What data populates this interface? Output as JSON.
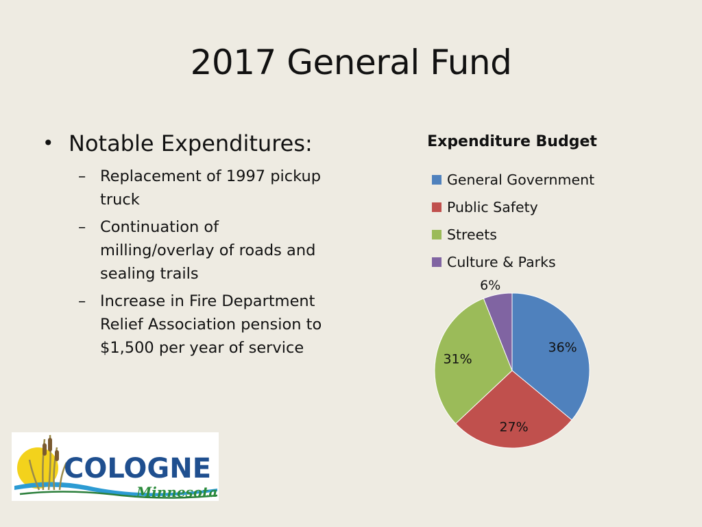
{
  "title": "2017 General Fund",
  "bullets": {
    "heading": "Notable Expenditures:",
    "items": [
      "Replacement of 1997 pickup truck",
      "Continuation of milling/overlay of roads and sealing trails",
      "Increase in Fire Department Relief Association pension to $1,500 per year of service"
    ]
  },
  "logo": {
    "name": "COLOGNE",
    "sub": "Minnesota"
  },
  "chart_data": {
    "type": "pie",
    "title": "Expenditure Budget",
    "legend_position": "top",
    "categories": [
      "General Government",
      "Public Safety",
      "Streets",
      "Culture & Parks"
    ],
    "values": [
      36,
      27,
      31,
      6
    ],
    "labels": [
      "36%",
      "27%",
      "31%",
      "6%"
    ],
    "colors": [
      "#4f81bd",
      "#c0504d",
      "#9bbb59",
      "#8064a2"
    ]
  }
}
